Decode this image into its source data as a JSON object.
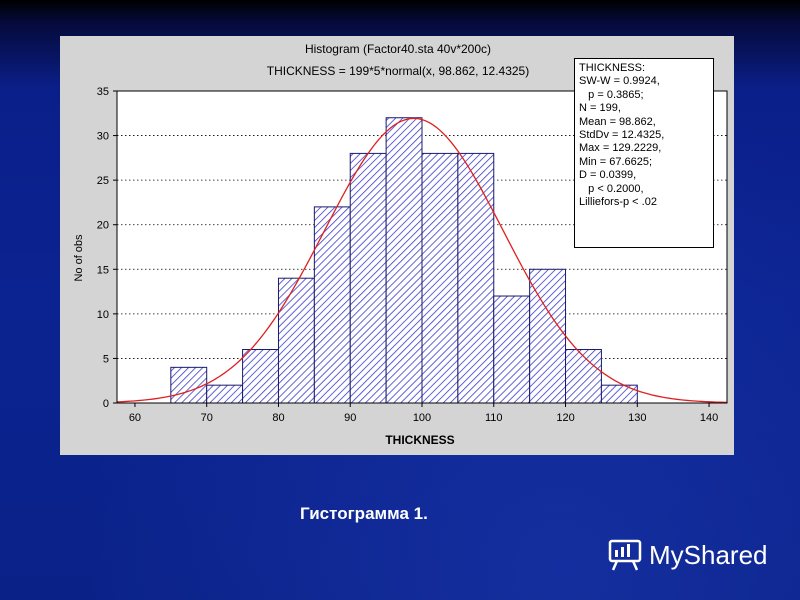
{
  "chart_data": {
    "type": "bar",
    "title": "Histogram (Factor40.sta 40v*200c)",
    "subtitle": "THICKNESS = 199*5*normal(x, 98.862, 12.4325)",
    "xlabel": "THICKNESS",
    "ylabel": "No of obs",
    "bins": [
      {
        "from": 65,
        "to": 70,
        "value": 4
      },
      {
        "from": 70,
        "to": 75,
        "value": 2
      },
      {
        "from": 75,
        "to": 80,
        "value": 6
      },
      {
        "from": 80,
        "to": 85,
        "value": 14
      },
      {
        "from": 85,
        "to": 90,
        "value": 22
      },
      {
        "from": 90,
        "to": 95,
        "value": 28
      },
      {
        "from": 95,
        "to": 100,
        "value": 32
      },
      {
        "from": 100,
        "to": 105,
        "value": 28
      },
      {
        "from": 105,
        "to": 110,
        "value": 28
      },
      {
        "from": 110,
        "to": 115,
        "value": 12
      },
      {
        "from": 115,
        "to": 120,
        "value": 15
      },
      {
        "from": 120,
        "to": 125,
        "value": 6
      },
      {
        "from": 125,
        "to": 130,
        "value": 2
      }
    ],
    "xlim": [
      57.5,
      142.5
    ],
    "ylim": [
      0,
      35
    ],
    "xticks": [
      60,
      70,
      80,
      90,
      100,
      110,
      120,
      130,
      140
    ],
    "yticks": [
      0,
      5,
      10,
      15,
      20,
      25,
      30,
      35
    ],
    "curve": {
      "type": "normal",
      "n": 199,
      "bin_width": 5,
      "mean": 98.862,
      "sd": 12.4325,
      "color": "#e02020"
    },
    "grid": "horizontal-dotted",
    "bar_fill": "#4a4ad0",
    "stats": [
      "THICKNESS:",
      "SW-W = 0.9924,",
      "   p = 0.3865;",
      "N = 199,",
      "Mean = 98.862,",
      "StdDv = 12.4325,",
      "Max = 129.2229,",
      "Min = 67.6625;",
      "D = 0.0399,",
      "   p < 0.2000,",
      "Lilliefors-p < .02"
    ]
  },
  "caption": "Гистограмма 1.",
  "watermark": {
    "text": "MyShared",
    "icon": "presentation-board-icon"
  }
}
